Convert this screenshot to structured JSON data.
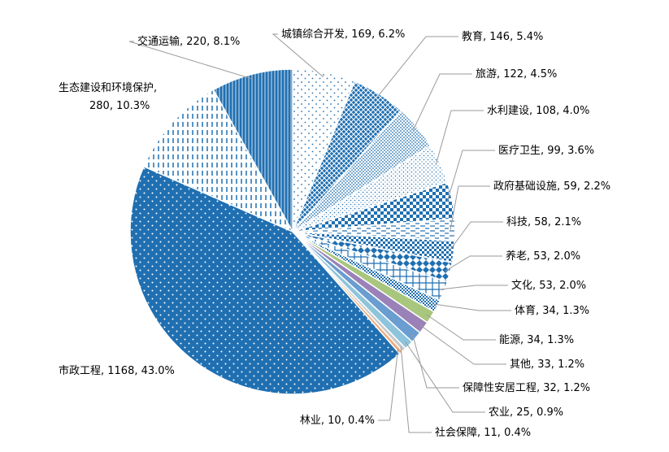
{
  "chart_data": {
    "type": "pie",
    "title": "",
    "legend": "none",
    "slices": [
      {
        "name": "城镇综合开发",
        "value": 169,
        "percent": "6.2%",
        "label": "城镇综合开发, 169, 6.2%",
        "pattern": "dots-sparse"
      },
      {
        "name": "教育",
        "value": 146,
        "percent": "5.4%",
        "label": "教育, 146, 5.4%",
        "pattern": "cross-hatch"
      },
      {
        "name": "旅游",
        "value": 122,
        "percent": "4.5%",
        "label": "旅游, 122, 4.5%",
        "pattern": "dots-dense"
      },
      {
        "name": "水利建设",
        "value": 108,
        "percent": "4.0%",
        "label": "水利建设, 108, 4.0%",
        "pattern": "dots-fine"
      },
      {
        "name": "医疗卫生",
        "value": 99,
        "percent": "3.6%",
        "label": "医疗卫生, 99, 3.6%",
        "pattern": "checker"
      },
      {
        "name": "政府基础设施",
        "value": 59,
        "percent": "2.2%",
        "label": "政府基础设施, 59, 2.2%",
        "pattern": "dashes"
      },
      {
        "name": "科技",
        "value": 58,
        "percent": "2.1%",
        "label": "科技, 58, 2.1%",
        "pattern": "checker-small"
      },
      {
        "name": "养老",
        "value": 53,
        "percent": "2.0%",
        "label": "养老, 53, 2.0%",
        "pattern": "diamonds"
      },
      {
        "name": "文化",
        "value": 53,
        "percent": "2.0%",
        "label": "文化, 53, 2.0%",
        "pattern": "grid"
      },
      {
        "name": "体育",
        "value": 34,
        "percent": "1.3%",
        "label": "体育, 34, 1.3%",
        "pattern": "checker-fine"
      },
      {
        "name": "能源",
        "value": 34,
        "percent": "1.3%",
        "label": "能源, 34, 1.3%",
        "pattern": "solid-green"
      },
      {
        "name": "其他",
        "value": 33,
        "percent": "1.2%",
        "label": "其他, 33, 1.2%",
        "pattern": "solid-purple"
      },
      {
        "name": "保障性安居工程",
        "value": 32,
        "percent": "1.2%",
        "label": "保障性安居工程, 32, 1.2%",
        "pattern": "solid-blue"
      },
      {
        "name": "农业",
        "value": 25,
        "percent": "0.9%",
        "label": "农业, 25, 0.9%",
        "pattern": "solid-lightblue"
      },
      {
        "name": "社会保障",
        "value": 11,
        "percent": "0.4%",
        "label": "社会保障, 11, 0.4%",
        "pattern": "solid-gray"
      },
      {
        "name": "林业",
        "value": 10,
        "percent": "0.4%",
        "label": "林业, 10, 0.4%",
        "pattern": "solid-orange"
      },
      {
        "name": "市政工程",
        "value": 1168,
        "percent": "43.0%",
        "label": "市政工程, 1168, 43.0%",
        "pattern": "dots-white"
      },
      {
        "name": "生态建设和环境保护",
        "value": 280,
        "percent": "10.3%",
        "label": "生态建设和环境保护, 280, 10.3%",
        "pattern": "vertical-dashes"
      },
      {
        "name": "交通运输",
        "value": 220,
        "percent": "8.1%",
        "label": "交通运输, 220, 8.1%",
        "pattern": "vertical-solid"
      }
    ],
    "colors": {
      "primary": "#1f6fb1",
      "green": "#a9c67e",
      "purple": "#9a82b9",
      "blue": "#6a9dd0",
      "lightblue": "#8ec4dc",
      "gray": "#c9c9c9",
      "orange": "#f0a97a"
    }
  }
}
